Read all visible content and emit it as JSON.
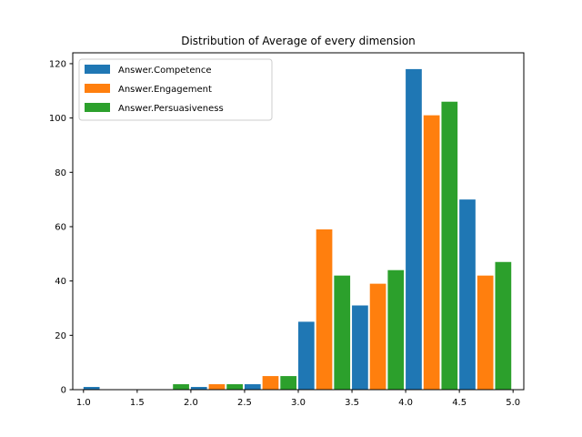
{
  "chart_data": {
    "type": "bar",
    "title": "Distribution of Average of every dimension",
    "xlabel": "",
    "ylabel": "",
    "xlim": [
      0.9,
      5.1
    ],
    "ylim": [
      0,
      124
    ],
    "x_ticks": [
      1.0,
      1.5,
      2.0,
      2.5,
      3.0,
      3.5,
      4.0,
      4.5,
      5.0
    ],
    "x_tick_labels": [
      "1.0",
      "1.5",
      "2.0",
      "2.5",
      "3.0",
      "3.5",
      "4.0",
      "4.5",
      "5.0"
    ],
    "y_ticks": [
      0,
      20,
      40,
      60,
      80,
      100,
      120
    ],
    "y_tick_labels": [
      "0",
      "20",
      "40",
      "60",
      "80",
      "100",
      "120"
    ],
    "bin_edges": [
      1.0,
      1.5,
      2.0,
      2.5,
      3.0,
      3.5,
      4.0,
      4.5,
      5.0
    ],
    "bins": [
      {
        "start": 1.0,
        "end": 1.5
      },
      {
        "start": 1.5,
        "end": 2.0
      },
      {
        "start": 2.0,
        "end": 2.5
      },
      {
        "start": 2.5,
        "end": 3.0
      },
      {
        "start": 3.0,
        "end": 3.5
      },
      {
        "start": 3.5,
        "end": 4.0
      },
      {
        "start": 4.0,
        "end": 4.5
      },
      {
        "start": 4.5,
        "end": 5.0
      }
    ],
    "series": [
      {
        "name": "Answer.Competence",
        "color": "#1f77b4",
        "values": [
          1,
          0,
          1,
          2,
          25,
          31,
          118,
          70
        ]
      },
      {
        "name": "Answer.Engagement",
        "color": "#ff7f0e",
        "values": [
          0,
          0,
          2,
          5,
          59,
          39,
          101,
          42
        ]
      },
      {
        "name": "Answer.Persuasiveness",
        "color": "#2ca02c",
        "values": [
          0,
          2,
          2,
          5,
          42,
          44,
          106,
          47
        ]
      }
    ],
    "legend_position": "upper left",
    "grid": false
  }
}
